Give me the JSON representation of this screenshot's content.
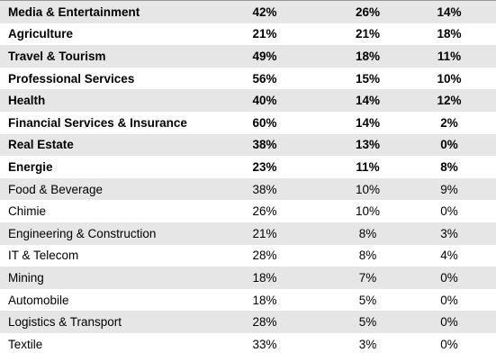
{
  "table": {
    "rows": [
      {
        "sector": "Media & Entertainment",
        "v1": "42%",
        "v2": "26%",
        "v3": "14%",
        "bold": true,
        "shaded": true
      },
      {
        "sector": "Agriculture",
        "v1": "21%",
        "v2": "21%",
        "v3": "18%",
        "bold": true,
        "shaded": false
      },
      {
        "sector": "Travel & Tourism",
        "v1": "49%",
        "v2": "18%",
        "v3": "11%",
        "bold": true,
        "shaded": true
      },
      {
        "sector": "Professional Services",
        "v1": "56%",
        "v2": "15%",
        "v3": "10%",
        "bold": true,
        "shaded": false
      },
      {
        "sector": "Health",
        "v1": "40%",
        "v2": "14%",
        "v3": "12%",
        "bold": true,
        "shaded": true
      },
      {
        "sector": "Financial Services & Insurance",
        "v1": "60%",
        "v2": "14%",
        "v3": "2%",
        "bold": true,
        "shaded": false
      },
      {
        "sector": "Real Estate",
        "v1": "38%",
        "v2": "13%",
        "v3": "0%",
        "bold": true,
        "shaded": true
      },
      {
        "sector": "Energie",
        "v1": "23%",
        "v2": "11%",
        "v3": "8%",
        "bold": true,
        "shaded": false
      },
      {
        "sector": "Food & Beverage",
        "v1": "38%",
        "v2": "10%",
        "v3": "9%",
        "bold": false,
        "shaded": true
      },
      {
        "sector": "Chimie",
        "v1": "26%",
        "v2": "10%",
        "v3": "0%",
        "bold": false,
        "shaded": false
      },
      {
        "sector": "Engineering & Construction",
        "v1": "21%",
        "v2": "8%",
        "v3": "3%",
        "bold": false,
        "shaded": true
      },
      {
        "sector": "IT & Telecom",
        "v1": "28%",
        "v2": "8%",
        "v3": "4%",
        "bold": false,
        "shaded": false
      },
      {
        "sector": "Mining",
        "v1": "18%",
        "v2": "7%",
        "v3": "0%",
        "bold": false,
        "shaded": true
      },
      {
        "sector": "Automobile",
        "v1": "18%",
        "v2": "5%",
        "v3": "0%",
        "bold": false,
        "shaded": false
      },
      {
        "sector": "Logistics & Transport",
        "v1": "28%",
        "v2": "5%",
        "v3": "0%",
        "bold": false,
        "shaded": true
      },
      {
        "sector": "Textile",
        "v1": "33%",
        "v2": "3%",
        "v3": "0%",
        "bold": false,
        "shaded": false
      }
    ]
  }
}
